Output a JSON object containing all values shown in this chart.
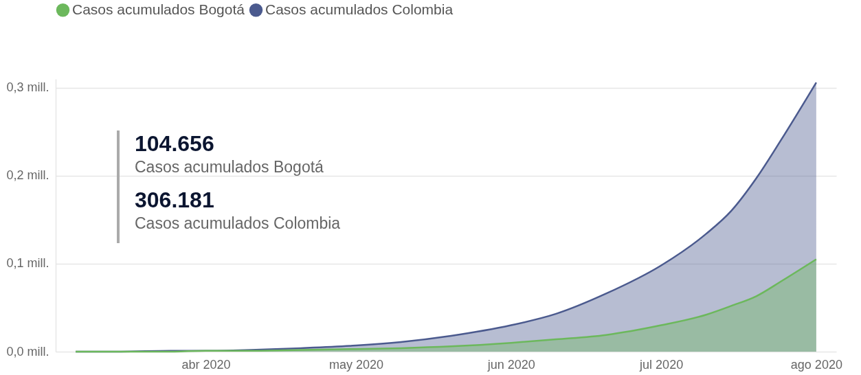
{
  "chart_data": {
    "type": "area",
    "legend": "top left",
    "grid": "y",
    "annotations": [
      "104.656",
      "Casos acumulados Bogotá",
      "306.181",
      "Casos acumulados Colombia"
    ],
    "xlim": [
      "2020-03-02",
      "2020-08-05"
    ],
    "xticks": [
      {
        "value": "2020-04-01",
        "label": "abr 2020"
      },
      {
        "value": "2020-05-01",
        "label": "may 2020"
      },
      {
        "value": "2020-06-01",
        "label": "jun 2020"
      },
      {
        "value": "2020-07-01",
        "label": "jul 2020"
      },
      {
        "value": "2020-08-01",
        "label": "ago 2020"
      }
    ],
    "ylim": [
      0,
      0.31
    ],
    "yticks": [
      {
        "value": 0,
        "label": "0,0 mill."
      },
      {
        "value": 0.1,
        "label": "0,1 mill."
      },
      {
        "value": 0.2,
        "label": "0,2 mill."
      },
      {
        "value": 0.3,
        "label": "0,3 mill."
      }
    ],
    "series": [
      {
        "name": "Casos acumulados Bogotá",
        "color": "#6cb85c",
        "x": [
          "2020-03-06",
          "2020-03-15",
          "2020-03-25",
          "2020-04-01",
          "2020-04-10",
          "2020-04-20",
          "2020-05-01",
          "2020-05-10",
          "2020-05-20",
          "2020-06-01",
          "2020-06-10",
          "2020-06-20",
          "2020-07-01",
          "2020-07-10",
          "2020-07-15",
          "2020-07-20",
          "2020-07-25",
          "2020-08-01"
        ],
        "values": [
          0,
          0,
          0,
          0.001,
          0.001,
          0.002,
          0.003,
          0.004,
          0.006,
          0.01,
          0.014,
          0.019,
          0.03,
          0.042,
          0.052,
          0.063,
          0.08,
          0.105
        ]
      },
      {
        "name": "Casos acumulados Colombia",
        "color": "#4b5a8e",
        "x": [
          "2020-03-06",
          "2020-03-15",
          "2020-03-25",
          "2020-04-01",
          "2020-04-10",
          "2020-04-20",
          "2020-05-01",
          "2020-05-10",
          "2020-05-20",
          "2020-06-01",
          "2020-06-10",
          "2020-06-20",
          "2020-07-01",
          "2020-07-10",
          "2020-07-15",
          "2020-07-20",
          "2020-07-25",
          "2020-08-01"
        ],
        "values": [
          0,
          0,
          0.001,
          0.001,
          0.002,
          0.004,
          0.007,
          0.011,
          0.018,
          0.03,
          0.043,
          0.066,
          0.098,
          0.134,
          0.16,
          0.197,
          0.241,
          0.306
        ]
      }
    ]
  }
}
